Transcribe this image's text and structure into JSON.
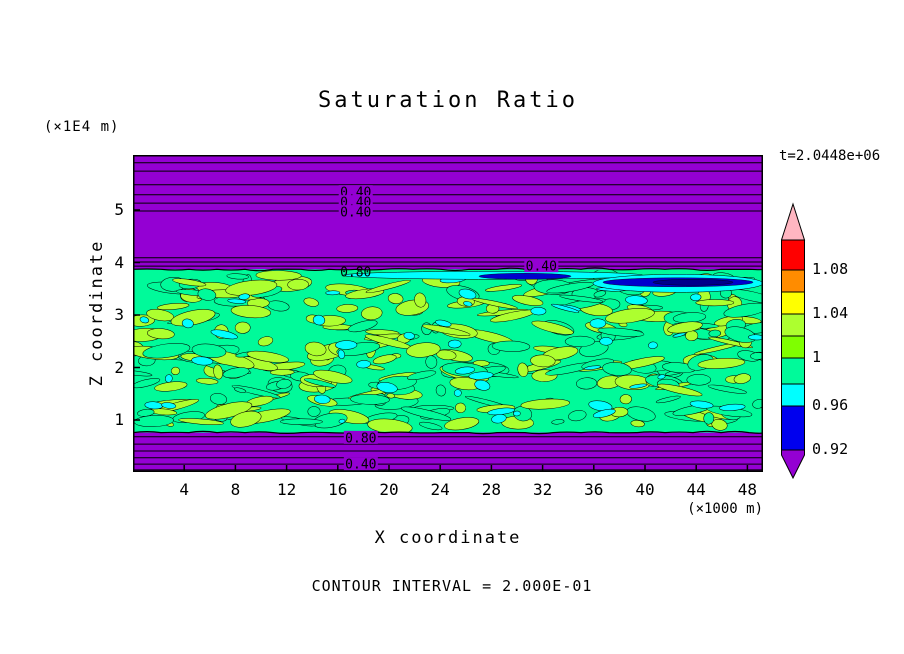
{
  "figure": {
    "title": "Saturation Ratio",
    "time_label": "t=2.0448e+06",
    "y_axis_unit": "(×1E4 m)",
    "x_axis_unit": "(×1000 m)",
    "x_axis_label": "X coordinate",
    "y_axis_label": "Z coordinate",
    "footer": "CONTOUR INTERVAL = 2.000E-01"
  },
  "chart_data": {
    "type": "contour",
    "title": "Saturation Ratio",
    "xlabel": "X coordinate",
    "ylabel": "Z coordinate",
    "x_unit": "(×1000 m)",
    "y_unit": "(×1E4 m)",
    "time_annotation": "t=2.0448e+06",
    "contour_interval_note": "CONTOUR INTERVAL = 2.000E-01",
    "x_ticks": [
      4,
      8,
      12,
      16,
      20,
      24,
      28,
      32,
      36,
      40,
      44,
      48
    ],
    "y_ticks": [
      5,
      4,
      3,
      2,
      1
    ],
    "xlim": [
      0,
      49.2
    ],
    "ylim": [
      0,
      6.05
    ],
    "grid": false,
    "colorbar": {
      "position": "right",
      "tick_labels": [
        "1.08",
        "1.04",
        "1",
        "0.96",
        "0.92"
      ],
      "colors_top_to_bottom": [
        "#FFB6C1",
        "#FF0000",
        "#FF8C00",
        "#FFFF00",
        "#ADFF2F",
        "#7FFF00",
        "#00FA9A",
        "#00FFFF",
        "#0000EE",
        "#9400D3"
      ]
    },
    "regions": [
      {
        "name": "upper-unsaturated-zone",
        "z_range": [
          3.87,
          6.05
        ],
        "x_range": [
          0,
          49.2
        ],
        "color": "#9400D3",
        "approx_value": "< 0.92"
      },
      {
        "name": "mottled-saturated-band",
        "z_range": [
          0.76,
          3.87
        ],
        "x_range": [
          0,
          49.2
        ],
        "colors": [
          "#00FA9A",
          "#ADFF2F",
          "#00FFFF"
        ],
        "approx_value": "0.96 - 1.04"
      },
      {
        "name": "low-saturation-streak",
        "z_range": [
          3.6,
          3.85
        ],
        "x_range": [
          27,
          49.2
        ],
        "colors": [
          "#0000CD",
          "#00FFFF"
        ],
        "approx_value": "0.92 - 0.96"
      },
      {
        "name": "lower-unsaturated-zone",
        "z_range": [
          0,
          0.76
        ],
        "x_range": [
          0,
          49.2
        ],
        "color": "#9400D3",
        "approx_value": "< 0.92"
      }
    ],
    "contour_lines_z": {
      "upper_band": [
        5.9,
        5.74,
        5.48,
        5.29,
        5.13,
        4.98,
        4.09,
        4.01,
        3.93
      ],
      "upper_boundary": 3.87,
      "lower_boundary": 0.76,
      "lower_band": [
        0.68,
        0.54,
        0.41,
        0.28,
        0.16,
        0.05
      ]
    },
    "contour_labels": [
      {
        "text": "0.40",
        "x": 17.4,
        "z": 5.34,
        "masked": true
      },
      {
        "text": "0.40",
        "x": 17.4,
        "z": 5.15,
        "masked": true
      },
      {
        "text": "0.40",
        "x": 17.4,
        "z": 4.96,
        "masked": true
      },
      {
        "text": "0.80",
        "x": 17.4,
        "z": 3.82,
        "masked": false
      },
      {
        "text": "0.40",
        "x": 31.9,
        "z": 3.93,
        "masked": true
      },
      {
        "text": "0.80",
        "x": 17.8,
        "z": 0.66,
        "masked": true
      },
      {
        "text": "0.40",
        "x": 17.8,
        "z": 0.16,
        "masked": true
      }
    ],
    "noise": {
      "seed": 11,
      "blob_count": 310,
      "cyan_count": 48
    }
  }
}
